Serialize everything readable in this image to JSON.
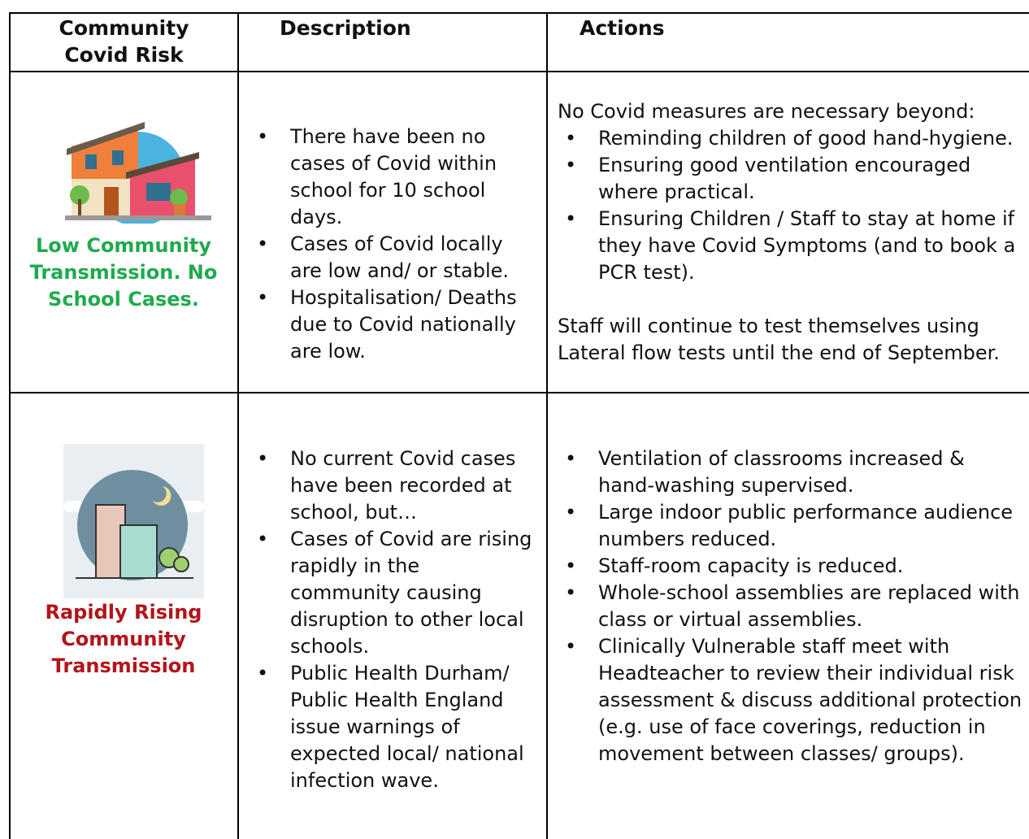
{
  "table": {
    "headers": [
      "Community Covid Risk",
      "Description",
      "Actions"
    ],
    "rows": [
      {
        "risk": "Low Community Transmission. No School Cases.",
        "description": [
          "There have been no cases of Covid within school for 10 school days.",
          "Cases of Covid locally are low and/ or stable.",
          "Hospitalisation/ Deaths due to Covid nationally are low."
        ],
        "actions_intro": "No Covid measures are necessary beyond:",
        "actions": [
          "Reminding children of good hand-hygiene.",
          "Ensuring good ventilation encouraged where practical.",
          "Ensuring Children / Staff to stay at home if they have Covid Symptoms (and to book a PCR test)."
        ],
        "actions_note": "Staff will continue to test themselves using Lateral flow tests until the end of September."
      },
      {
        "risk": "Rapidly Rising Community Transmission",
        "description": [
          "No current Covid cases have been recorded at school, but…",
          "Cases of Covid are rising rapidly in the community causing disruption to other local schools.",
          "Public Health Durham/ Public Health England issue warnings of expected local/ national infection wave."
        ],
        "actions": [
          "Ventilation of classrooms increased & hand-washing supervised.",
          "Large indoor public performance audience numbers reduced.",
          "Staff-room capacity is reduced.",
          "Whole-school assemblies are replaced with class or virtual assemblies.",
          "Clinically Vulnerable staff meet with Headteacher to review their individual risk assessment & discuss additional protection (e.g. use of face coverings, reduction in movement between classes/ groups)."
        ]
      }
    ]
  }
}
